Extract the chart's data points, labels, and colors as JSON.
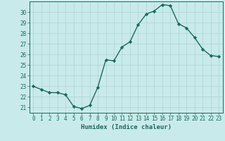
{
  "x": [
    0,
    1,
    2,
    3,
    4,
    5,
    6,
    7,
    8,
    9,
    10,
    11,
    12,
    13,
    14,
    15,
    16,
    17,
    18,
    19,
    20,
    21,
    22,
    23
  ],
  "y": [
    23.0,
    22.7,
    22.4,
    22.4,
    22.2,
    21.1,
    20.9,
    21.2,
    22.9,
    25.5,
    25.4,
    26.7,
    27.2,
    28.8,
    29.8,
    30.1,
    30.7,
    30.6,
    28.9,
    28.5,
    27.6,
    26.5,
    25.9,
    25.8
  ],
  "line_color": "#1a6b5a",
  "marker": "D",
  "markersize": 2.2,
  "linewidth": 1.0,
  "bg_color": "#c8eaea",
  "grid_color": "#afd4d0",
  "xlabel": "Humidex (Indice chaleur)",
  "xlim": [
    -0.5,
    23.5
  ],
  "ylim": [
    20.5,
    31.0
  ],
  "yticks": [
    21,
    22,
    23,
    24,
    25,
    26,
    27,
    28,
    29,
    30
  ],
  "xticks": [
    0,
    1,
    2,
    3,
    4,
    5,
    6,
    7,
    8,
    9,
    10,
    11,
    12,
    13,
    14,
    15,
    16,
    17,
    18,
    19,
    20,
    21,
    22,
    23
  ],
  "tick_color": "#1a6b5a",
  "label_fontsize": 6.5,
  "tick_fontsize": 5.5
}
